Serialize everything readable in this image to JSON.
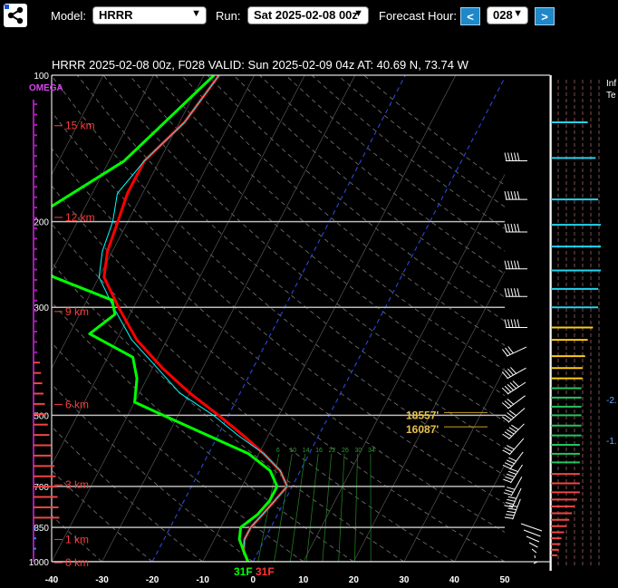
{
  "toolbar": {
    "model_label": "Model:",
    "model_value": "HRRR",
    "run_label": "Run:",
    "run_value": "Sat 2025-02-08 00z",
    "forecast_label": "Forecast Hour:",
    "prev_label": "<",
    "hour_value": "028",
    "next_label": ">"
  },
  "side_panel": {
    "title_line1": "Inf",
    "title_line2": "Te",
    "value_upper": "-2.",
    "value_lower": "-1."
  },
  "chart_data": {
    "type": "line",
    "title": "HRRR 2025-02-08 00z, F028  VALID: Sun 2025-02-09 04z  AT: 40.69 N, 73.74 W",
    "omega_label": "OMEGA",
    "xlim": [
      -40,
      50
    ],
    "x_ticks": [
      "-40",
      "-30",
      "-20",
      "-10",
      "0",
      "10",
      "20",
      "30",
      "40",
      "50"
    ],
    "pressure_range_hpa": [
      100,
      1000
    ],
    "pressure_ticks": [
      "100",
      "200",
      "300",
      "500",
      "700",
      "850",
      "1000"
    ],
    "height_labels": [
      {
        "label": "15 km",
        "p": 127
      },
      {
        "label": "12 km",
        "p": 196
      },
      {
        "label": "9 km",
        "p": 306
      },
      {
        "label": "6 km",
        "p": 475
      },
      {
        "label": "3 km",
        "p": 695
      },
      {
        "label": "1 km",
        "p": 900
      },
      {
        "label": "0 km",
        "p": 1005
      }
    ],
    "mixing_ratio_labels": [
      "6",
      "10",
      "14",
      "16",
      "22",
      "26",
      "30",
      "34"
    ],
    "series": [
      {
        "color": "#ff0000",
        "points": [
          [
            100,
            -57
          ],
          [
            125,
            -59
          ],
          [
            150,
            -63
          ],
          [
            175,
            -63
          ],
          [
            200,
            -62
          ],
          [
            230,
            -61
          ],
          [
            260,
            -59
          ],
          [
            300,
            -53
          ],
          [
            350,
            -46
          ],
          [
            400,
            -38
          ],
          [
            450,
            -30
          ],
          [
            500,
            -22
          ],
          [
            550,
            -15
          ],
          [
            600,
            -9
          ],
          [
            650,
            -4
          ],
          [
            700,
            -1
          ],
          [
            750,
            -2
          ],
          [
            800,
            -3
          ],
          [
            850,
            -4
          ],
          [
            900,
            -4
          ],
          [
            950,
            -3
          ],
          [
            1000,
            -1
          ]
        ]
      },
      {
        "color": "#00ffff",
        "points": [
          [
            100,
            -57
          ],
          [
            125,
            -59
          ],
          [
            150,
            -63
          ],
          [
            175,
            -65
          ],
          [
            200,
            -63
          ],
          [
            230,
            -62
          ],
          [
            260,
            -60
          ],
          [
            300,
            -54
          ],
          [
            350,
            -47
          ],
          [
            400,
            -39
          ],
          [
            450,
            -32
          ],
          [
            500,
            -23
          ],
          [
            550,
            -16
          ],
          [
            600,
            -9
          ],
          [
            650,
            -4
          ],
          [
            700,
            -1
          ],
          [
            750,
            -2
          ],
          [
            800,
            -3
          ],
          [
            850,
            -4
          ],
          [
            900,
            -4
          ],
          [
            950,
            -3
          ],
          [
            1000,
            -1
          ]
        ]
      },
      {
        "color": "#00ff00",
        "points": [
          [
            100,
            -58
          ],
          [
            150,
            -67
          ],
          [
            200,
            -80
          ],
          [
            230,
            -79
          ],
          [
            260,
            -69
          ],
          [
            290,
            -55
          ],
          [
            310,
            -53
          ],
          [
            340,
            -56
          ],
          [
            380,
            -45
          ],
          [
            420,
            -42
          ],
          [
            470,
            -40
          ],
          [
            500,
            -33
          ],
          [
            550,
            -22
          ],
          [
            600,
            -12
          ],
          [
            650,
            -6
          ],
          [
            700,
            -3
          ],
          [
            750,
            -3
          ],
          [
            800,
            -4
          ],
          [
            850,
            -6
          ],
          [
            900,
            -5
          ],
          [
            950,
            -3
          ],
          [
            1000,
            -1
          ]
        ]
      }
    ],
    "surface_temp_labels": [
      {
        "text": "31F",
        "color": "#00ff00"
      },
      {
        "text": "31F",
        "color": "#ff3333"
      }
    ],
    "level_annotations": [
      {
        "text": "18557'",
        "p": 500
      },
      {
        "text": "16087'",
        "p": 535
      }
    ],
    "wind_barb_levels_hpa": [
      150,
      180,
      210,
      250,
      285,
      330,
      370,
      410,
      440,
      470,
      500,
      540,
      580,
      620,
      660,
      700,
      740,
      780
    ],
    "omega_bars_count": 44,
    "side_bars": [
      {
        "p": 125,
        "color": "#22d3ee",
        "len": 0.7
      },
      {
        "p": 148,
        "color": "#22d3ee",
        "len": 0.85
      },
      {
        "p": 180,
        "color": "#22d3ee",
        "len": 0.9
      },
      {
        "p": 203,
        "color": "#22d3ee",
        "len": 0.95
      },
      {
        "p": 225,
        "color": "#22d3ee",
        "len": 0.95
      },
      {
        "p": 252,
        "color": "#22d3ee",
        "len": 0.95
      },
      {
        "p": 275,
        "color": "#22d3ee",
        "len": 0.9
      },
      {
        "p": 300,
        "color": "#22d3ee",
        "len": 0.9
      },
      {
        "p": 330,
        "color": "#facc15",
        "len": 0.8
      },
      {
        "p": 350,
        "color": "#facc15",
        "len": 0.7
      },
      {
        "p": 378,
        "color": "#facc15",
        "len": 0.65
      },
      {
        "p": 400,
        "color": "#facc15",
        "len": 0.6
      },
      {
        "p": 420,
        "color": "#facc15",
        "len": 0.6
      },
      {
        "p": 440,
        "color": "#22c55e",
        "len": 0.58
      },
      {
        "p": 460,
        "color": "#22c55e",
        "len": 0.58
      },
      {
        "p": 480,
        "color": "#22c55e",
        "len": 0.58
      },
      {
        "p": 500,
        "color": "#22c55e",
        "len": 0.58
      },
      {
        "p": 525,
        "color": "#22c55e",
        "len": 0.58
      },
      {
        "p": 550,
        "color": "#22c55e",
        "len": 0.58
      },
      {
        "p": 575,
        "color": "#22c55e",
        "len": 0.55
      },
      {
        "p": 600,
        "color": "#22c55e",
        "len": 0.55
      },
      {
        "p": 625,
        "color": "#22c55e",
        "len": 0.55
      },
      {
        "p": 660,
        "color": "#ef4444",
        "len": 0.55
      },
      {
        "p": 690,
        "color": "#ef4444",
        "len": 0.55
      },
      {
        "p": 720,
        "color": "#ef4444",
        "len": 0.55
      },
      {
        "p": 745,
        "color": "#ef4444",
        "len": 0.5
      },
      {
        "p": 770,
        "color": "#ef4444",
        "len": 0.45
      },
      {
        "p": 795,
        "color": "#ef4444",
        "len": 0.4
      },
      {
        "p": 820,
        "color": "#ef4444",
        "len": 0.35
      },
      {
        "p": 845,
        "color": "#ef4444",
        "len": 0.3
      },
      {
        "p": 870,
        "color": "#ef4444",
        "len": 0.25
      },
      {
        "p": 895,
        "color": "#ef4444",
        "len": 0.2
      },
      {
        "p": 920,
        "color": "#ef4444",
        "len": 0.18
      },
      {
        "p": 945,
        "color": "#ef4444",
        "len": 0.15
      },
      {
        "p": 970,
        "color": "#ef4444",
        "len": 0.12
      }
    ]
  }
}
